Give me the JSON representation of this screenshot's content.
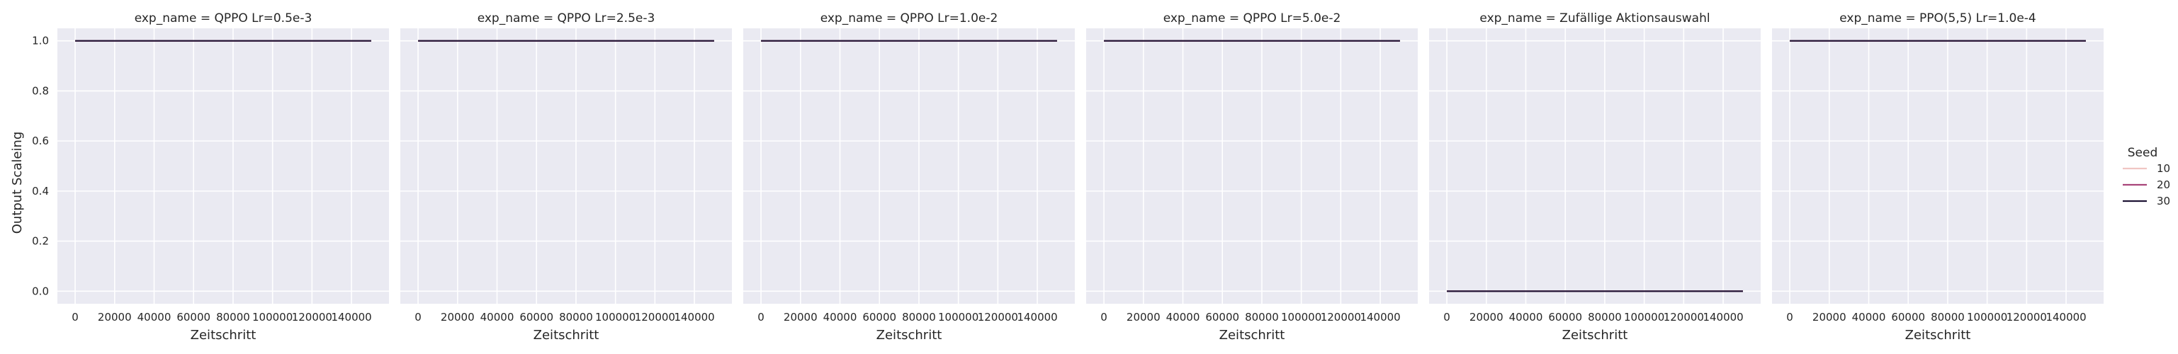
{
  "chart_data": {
    "type": "line",
    "ylabel": "Output Scaleing",
    "xlabel": "Zeitschritt",
    "xlim": [
      -9000,
      159000
    ],
    "ylim": [
      -0.05,
      1.05
    ],
    "x_ticks": [
      0,
      20000,
      40000,
      60000,
      80000,
      100000,
      120000,
      140000
    ],
    "x_tick_labels": [
      "0",
      "20000",
      "40000",
      "60000",
      "80000",
      "100000",
      "120000",
      "140000"
    ],
    "y_ticks": [
      0.0,
      0.2,
      0.4,
      0.6,
      0.8,
      1.0
    ],
    "y_tick_labels": [
      "0.0",
      "0.2",
      "0.4",
      "0.6",
      "0.8",
      "1.0"
    ],
    "grid": true,
    "legend": {
      "title": "Seed",
      "placement": "right",
      "entries": [
        {
          "label": "10",
          "color": "#f0c6c3"
        },
        {
          "label": "20",
          "color": "#a8457a"
        },
        {
          "label": "30",
          "color": "#1f1535"
        }
      ]
    },
    "panels": [
      {
        "title": "exp_name = QPPO Lr=0.5e-3",
        "series": [
          {
            "name": "10",
            "x": [
              0,
              150000
            ],
            "y": [
              1.0,
              1.0
            ]
          },
          {
            "name": "20",
            "x": [
              0,
              150000
            ],
            "y": [
              1.0,
              1.0
            ]
          },
          {
            "name": "30",
            "x": [
              0,
              150000
            ],
            "y": [
              1.0,
              1.0
            ]
          }
        ]
      },
      {
        "title": "exp_name = QPPO Lr=2.5e-3",
        "series": [
          {
            "name": "10",
            "x": [
              0,
              150000
            ],
            "y": [
              1.0,
              1.0
            ]
          },
          {
            "name": "20",
            "x": [
              0,
              150000
            ],
            "y": [
              1.0,
              1.0
            ]
          },
          {
            "name": "30",
            "x": [
              0,
              150000
            ],
            "y": [
              1.0,
              1.0
            ]
          }
        ]
      },
      {
        "title": "exp_name = QPPO Lr=1.0e-2",
        "series": [
          {
            "name": "10",
            "x": [
              0,
              150000
            ],
            "y": [
              1.0,
              1.0
            ]
          },
          {
            "name": "20",
            "x": [
              0,
              150000
            ],
            "y": [
              1.0,
              1.0
            ]
          },
          {
            "name": "30",
            "x": [
              0,
              150000
            ],
            "y": [
              1.0,
              1.0
            ]
          }
        ]
      },
      {
        "title": "exp_name = QPPO Lr=5.0e-2",
        "series": [
          {
            "name": "10",
            "x": [
              0,
              150000
            ],
            "y": [
              1.0,
              1.0
            ]
          },
          {
            "name": "20",
            "x": [
              0,
              150000
            ],
            "y": [
              1.0,
              1.0
            ]
          },
          {
            "name": "30",
            "x": [
              0,
              150000
            ],
            "y": [
              1.0,
              1.0
            ]
          }
        ]
      },
      {
        "title": "exp_name = Zufällige Aktionsauswahl",
        "series": [
          {
            "name": "10",
            "x": [
              0,
              150000
            ],
            "y": [
              0.0,
              0.0
            ]
          },
          {
            "name": "20",
            "x": [
              0,
              150000
            ],
            "y": [
              0.0,
              0.0
            ]
          },
          {
            "name": "30",
            "x": [
              0,
              150000
            ],
            "y": [
              0.0,
              0.0
            ]
          }
        ]
      },
      {
        "title": "exp_name = PPO(5,5) Lr=1.0e-4",
        "series": [
          {
            "name": "10",
            "x": [
              0,
              150000
            ],
            "y": [
              1.0,
              1.0
            ]
          },
          {
            "name": "20",
            "x": [
              0,
              150000
            ],
            "y": [
              1.0,
              1.0
            ]
          },
          {
            "name": "30",
            "x": [
              0,
              150000
            ],
            "y": [
              1.0,
              1.0
            ]
          }
        ]
      }
    ]
  }
}
